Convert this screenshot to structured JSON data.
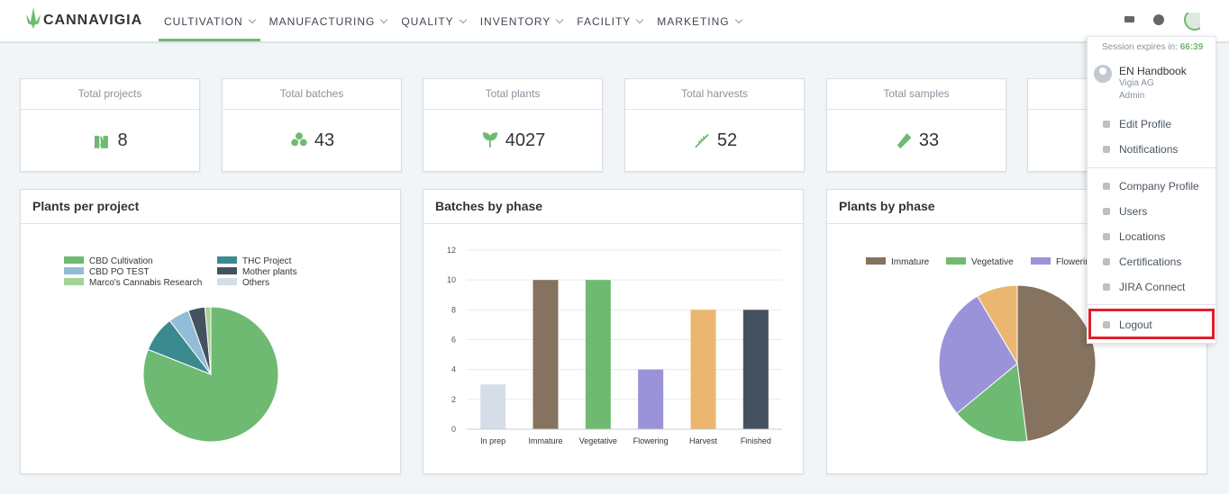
{
  "header": {
    "logo": "CANNAVIGIA",
    "menu": [
      "CULTIVATION",
      "MANUFACTURING",
      "QUALITY",
      "INVENTORY",
      "FACILITY",
      "MARKETING"
    ]
  },
  "stats": [
    {
      "label": "Total projects",
      "value": 8
    },
    {
      "label": "Total batches",
      "value": 43
    },
    {
      "label": "Total plants",
      "value": 4027
    },
    {
      "label": "Total harvests",
      "value": 52
    },
    {
      "label": "Total samples",
      "value": 33
    }
  ],
  "user_menu": {
    "session_label": "Session expires in:",
    "session_time": "66:39",
    "user_name": "EN Handbook",
    "company": "Vigia AG",
    "role": "Admin",
    "items": [
      "Edit Profile",
      "Notifications",
      "Company Profile",
      "Users",
      "Locations",
      "Certifications",
      "JIRA Connect",
      "Logout"
    ]
  },
  "chart_data": [
    {
      "type": "pie",
      "title": "Plants per project",
      "categories": [
        "CBD Cultivation",
        "THC Project",
        "CBD PO TEST",
        "Mother plants",
        "Marco's Cannabis Research",
        "Others"
      ],
      "values": [
        81,
        8.6,
        5,
        4,
        1.4,
        0
      ],
      "colors": [
        "#6fba72",
        "#3a8a8f",
        "#93bcd8",
        "#44525f",
        "#a4d196",
        "#d5dde8"
      ]
    },
    {
      "type": "bar",
      "title": "Batches by phase",
      "categories": [
        "In prep",
        "Immature",
        "Vegetative",
        "Flowering",
        "Harvest",
        "Finished"
      ],
      "values": [
        3,
        10,
        10,
        4,
        8,
        8
      ],
      "colors": [
        "#d5dde8",
        "#85725f",
        "#6fba72",
        "#9b93d9",
        "#ebb670",
        "#44525f"
      ],
      "ylim": [
        0,
        12
      ],
      "yticks": [
        0,
        2,
        4,
        6,
        8,
        10,
        12
      ],
      "grid": true
    },
    {
      "type": "pie",
      "title": "Plants by phase",
      "categories": [
        "Immature",
        "Vegetative",
        "Flowering",
        null
      ],
      "values": [
        48,
        16,
        27.5,
        8.5
      ],
      "colors": [
        "#85725f",
        "#6fba72",
        "#9b93d9",
        "#ebb670"
      ]
    }
  ]
}
